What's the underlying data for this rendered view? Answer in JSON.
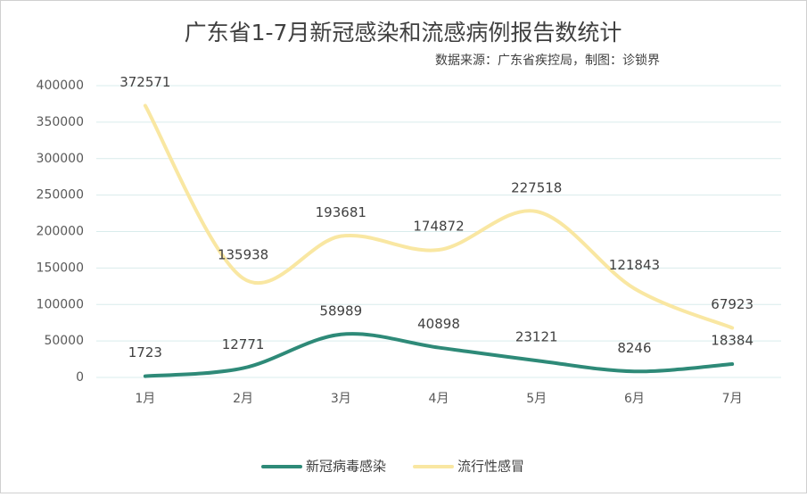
{
  "chart_data": {
    "type": "line",
    "title": "广东省1-7月新冠感染和流感病例报告数统计",
    "subtitle": "数据来源：广东省疾控局，制图：诊锁界",
    "categories": [
      "1月",
      "2月",
      "3月",
      "4月",
      "5月",
      "6月",
      "7月"
    ],
    "series": [
      {
        "name": "新冠病毒感染",
        "color": "#2e8a78",
        "values": [
          1723,
          12771,
          58989,
          40898,
          23121,
          8246,
          18384
        ]
      },
      {
        "name": "流行性感冒",
        "color": "#f9e7a2",
        "values": [
          372571,
          135938,
          193681,
          174872,
          227518,
          121843,
          67923
        ]
      }
    ],
    "ylim": [
      0,
      400000
    ],
    "yticks": [
      0,
      50000,
      100000,
      150000,
      200000,
      250000,
      300000,
      350000,
      400000
    ],
    "grid": true,
    "smooth": true,
    "legend": "bottom"
  }
}
